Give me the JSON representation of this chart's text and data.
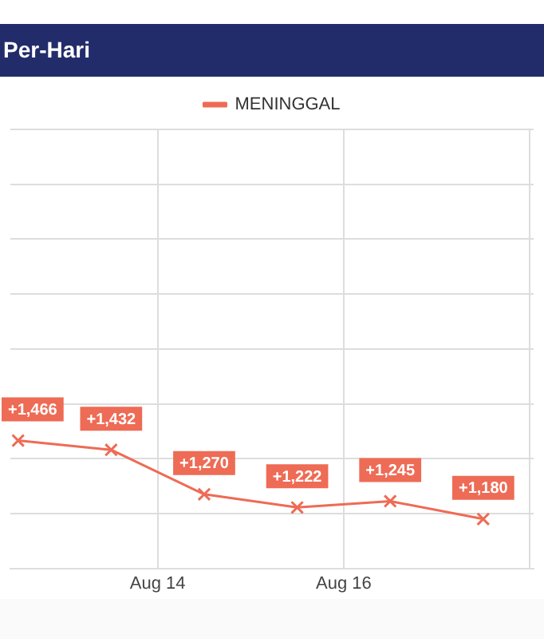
{
  "chart_data": {
    "type": "line",
    "title": "Per-Hari",
    "x": [
      "--08-12T12:00",
      "--08-13T12:00",
      "--08-14T12:00",
      "--08-15T12:00",
      "--08-16T12:00",
      "--08-17T12:00"
    ],
    "series": [
      {
        "name": "MENINGGAL",
        "color": "#ee6b55",
        "values": [
          1466,
          1432,
          1270,
          1222,
          1245,
          1180
        ],
        "value_labels": [
          "+1,466",
          "+1,432",
          "+1,270",
          "+1,222",
          "+1,245",
          "+1,180"
        ]
      }
    ],
    "xlim": [
      "--08-12T10:00",
      "--08-18T01:00"
    ],
    "xticks": [
      {
        "value": "--08-14",
        "label": "Aug 14"
      },
      {
        "value": "--08-16",
        "label": "Aug 16"
      },
      {
        "value": "--08-18",
        "label": null
      }
    ],
    "ylim": [
      1000,
      2600
    ],
    "yticks": [
      1000,
      1200,
      1400,
      1600,
      1800,
      2000,
      2200,
      2400,
      2600
    ],
    "tick_labels": "x",
    "grid": true,
    "legend": "top",
    "marker": "cross",
    "line_style": "solid"
  }
}
